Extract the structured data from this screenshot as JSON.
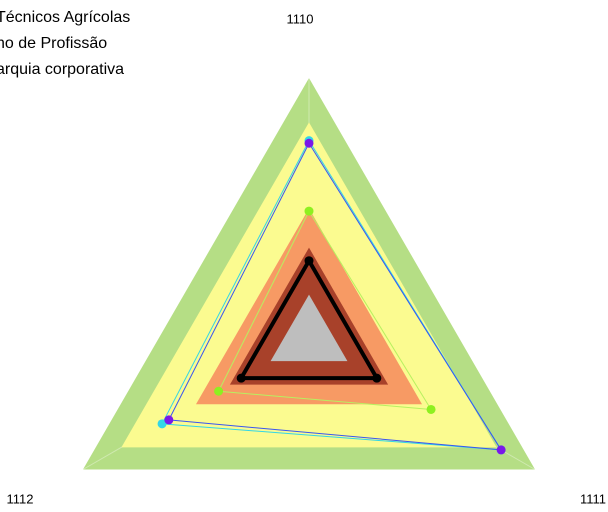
{
  "chart_data": {
    "type": "radar",
    "title_lines": [
      "Técnicos Agrícolas",
      "no de Profissão",
      "arquia corporativa"
    ],
    "categories": [
      "1110",
      "1111",
      "1112"
    ],
    "rlim": [
      0,
      1
    ],
    "series": [
      {
        "style": "band",
        "color": "#b5de85",
        "values": [
          1.0,
          1.0,
          1.0
        ]
      },
      {
        "style": "band",
        "color": "#fbfb90",
        "values": [
          0.83,
          0.83,
          0.83
        ]
      },
      {
        "style": "band",
        "color": "#f79a64",
        "values": [
          0.5,
          0.5,
          0.5
        ]
      },
      {
        "style": "band",
        "color": "#a8412a",
        "values": [
          0.35,
          0.35,
          0.35
        ]
      },
      {
        "style": "band",
        "color": "#bebebe",
        "values": [
          0.17,
          0.17,
          0.17
        ]
      },
      {
        "style": "line",
        "color": "#33d6e6",
        "marker_color": "#33d6e6",
        "width": 1,
        "values": [
          0.76,
          0.85,
          0.65
        ]
      },
      {
        "style": "line",
        "color": "#3a55f0",
        "marker_color": "#7a18e8",
        "width": 1,
        "values": [
          0.75,
          0.85,
          0.62
        ]
      },
      {
        "style": "line",
        "color": "#b8f060",
        "marker_color": "#8ef020",
        "width": 1,
        "values": [
          0.49,
          0.54,
          0.4
        ]
      },
      {
        "style": "line",
        "color": "#000000",
        "marker_color": "#000000",
        "width": 4,
        "values": [
          0.3,
          0.3,
          0.3
        ]
      }
    ]
  }
}
